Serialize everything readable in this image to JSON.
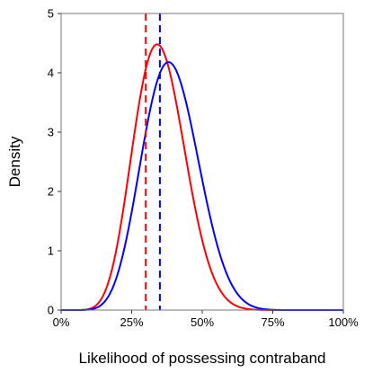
{
  "chart_data": {
    "type": "line",
    "xlabel": "Likelihood of possessing contraband",
    "ylabel": "Density",
    "xlim": [
      0,
      1
    ],
    "ylim": [
      0,
      5
    ],
    "x_ticks": [
      0,
      0.25,
      0.5,
      0.75,
      1.0
    ],
    "x_tick_labels": [
      "0%",
      "25%",
      "50%",
      "75%",
      "100%"
    ],
    "y_ticks": [
      0,
      1,
      2,
      3,
      4,
      5
    ],
    "y_tick_labels": [
      "0",
      "1",
      "2",
      "3",
      "4",
      "5"
    ],
    "grid": false,
    "legend": "none",
    "series": [
      {
        "color": "#ff0000",
        "peak_x": 0.34,
        "peak_density": 4.48,
        "curve": {
          "kind": "beta",
          "alpha": 9.76,
          "beta": 17.98
        },
        "vline_x": 0.3
      },
      {
        "color": "#0000ff",
        "peak_x": 0.38,
        "peak_density": 4.18,
        "curve": {
          "kind": "beta",
          "alpha": 9.52,
          "beta": 14.86
        },
        "vline_x": 0.35
      }
    ]
  }
}
